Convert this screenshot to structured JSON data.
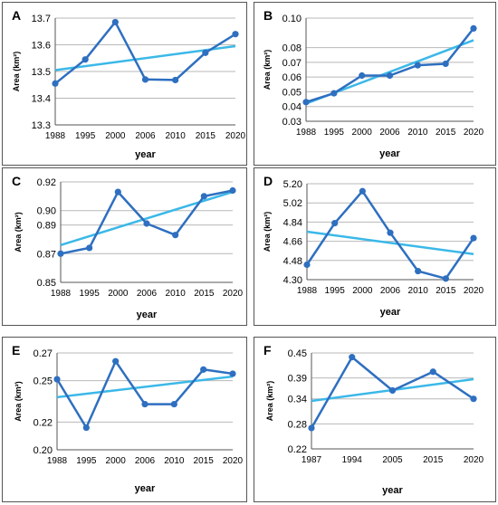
{
  "colors": {
    "series": "#2e6fc0",
    "trend": "#3bb8e8",
    "grid": "#b8b8b8",
    "axis": "#555555"
  },
  "chart_data": [
    {
      "panel_label": "A",
      "type": "line",
      "x": [
        "1988",
        "1995",
        "2000",
        "2006",
        "2010",
        "2015",
        "2020"
      ],
      "values": [
        13.455,
        13.545,
        13.685,
        13.47,
        13.468,
        13.57,
        13.64
      ],
      "trend": [
        13.505,
        13.595
      ],
      "yticks": [
        "13.3",
        "13.4",
        "13.5",
        "13.6",
        "13.7"
      ],
      "ylim": [
        13.3,
        13.7
      ],
      "xlabel": "year",
      "ylabel": "Area (km²)"
    },
    {
      "panel_label": "B",
      "type": "line",
      "x": [
        "1988",
        "1995",
        "2000",
        "2006",
        "2010",
        "2015",
        "2020"
      ],
      "values": [
        0.043,
        0.049,
        0.061,
        0.061,
        0.068,
        0.069,
        0.093
      ],
      "trend": [
        0.042,
        0.085
      ],
      "yticks": [
        "0.03",
        "0.04",
        "0.05",
        "0.06",
        "0.07",
        "0.08",
        "0.10"
      ],
      "ylim": [
        0.03,
        0.1
      ],
      "xlabel": "year",
      "ylabel": "Area (km²)"
    },
    {
      "panel_label": "C",
      "type": "line",
      "x": [
        "1988",
        "1995",
        "2000",
        "2006",
        "2010",
        "2015",
        "2020"
      ],
      "values": [
        0.87,
        0.874,
        0.913,
        0.891,
        0.883,
        0.91,
        0.914
      ],
      "trend": [
        0.876,
        0.913
      ],
      "yticks": [
        "0.85",
        "0.87",
        "0.89",
        "0.90",
        "0.92"
      ],
      "ylim": [
        0.85,
        0.92
      ],
      "xlabel": "year",
      "ylabel": "Area (km²)"
    },
    {
      "panel_label": "D",
      "type": "line",
      "x": [
        "1988",
        "1995",
        "2000",
        "2006",
        "2010",
        "2015",
        "2020"
      ],
      "values": [
        4.44,
        4.83,
        5.13,
        4.74,
        4.38,
        4.31,
        4.69
      ],
      "trend": [
        4.75,
        4.54
      ],
      "yticks": [
        "4.30",
        "4.48",
        "4.66",
        "4.84",
        "5.02",
        "5.20"
      ],
      "ylim": [
        4.3,
        5.2
      ],
      "xlabel": "year",
      "ylabel": "Area (km²)"
    },
    {
      "panel_label": "E",
      "type": "line",
      "x": [
        "1988",
        "1995",
        "2000",
        "2006",
        "2010",
        "2015",
        "2020"
      ],
      "values": [
        0.251,
        0.216,
        0.264,
        0.233,
        0.233,
        0.258,
        0.255
      ],
      "trend": [
        0.238,
        0.253
      ],
      "yticks": [
        "0.20",
        "0.22",
        "0.25",
        "0.27"
      ],
      "ylim": [
        0.2,
        0.27
      ],
      "xlabel": "year",
      "ylabel": "Area (km²)"
    },
    {
      "panel_label": "F",
      "type": "line",
      "x": [
        "1987",
        "1994",
        "2005",
        "2015",
        "2020"
      ],
      "values": [
        0.27,
        0.44,
        0.36,
        0.405,
        0.34
      ],
      "trend": [
        0.335,
        0.387
      ],
      "yticks": [
        "0.22",
        "0.28",
        "0.34",
        "0.39",
        "0.45"
      ],
      "ylim": [
        0.22,
        0.45
      ],
      "xlabel": "year",
      "ylabel": "Area (km²)"
    }
  ]
}
